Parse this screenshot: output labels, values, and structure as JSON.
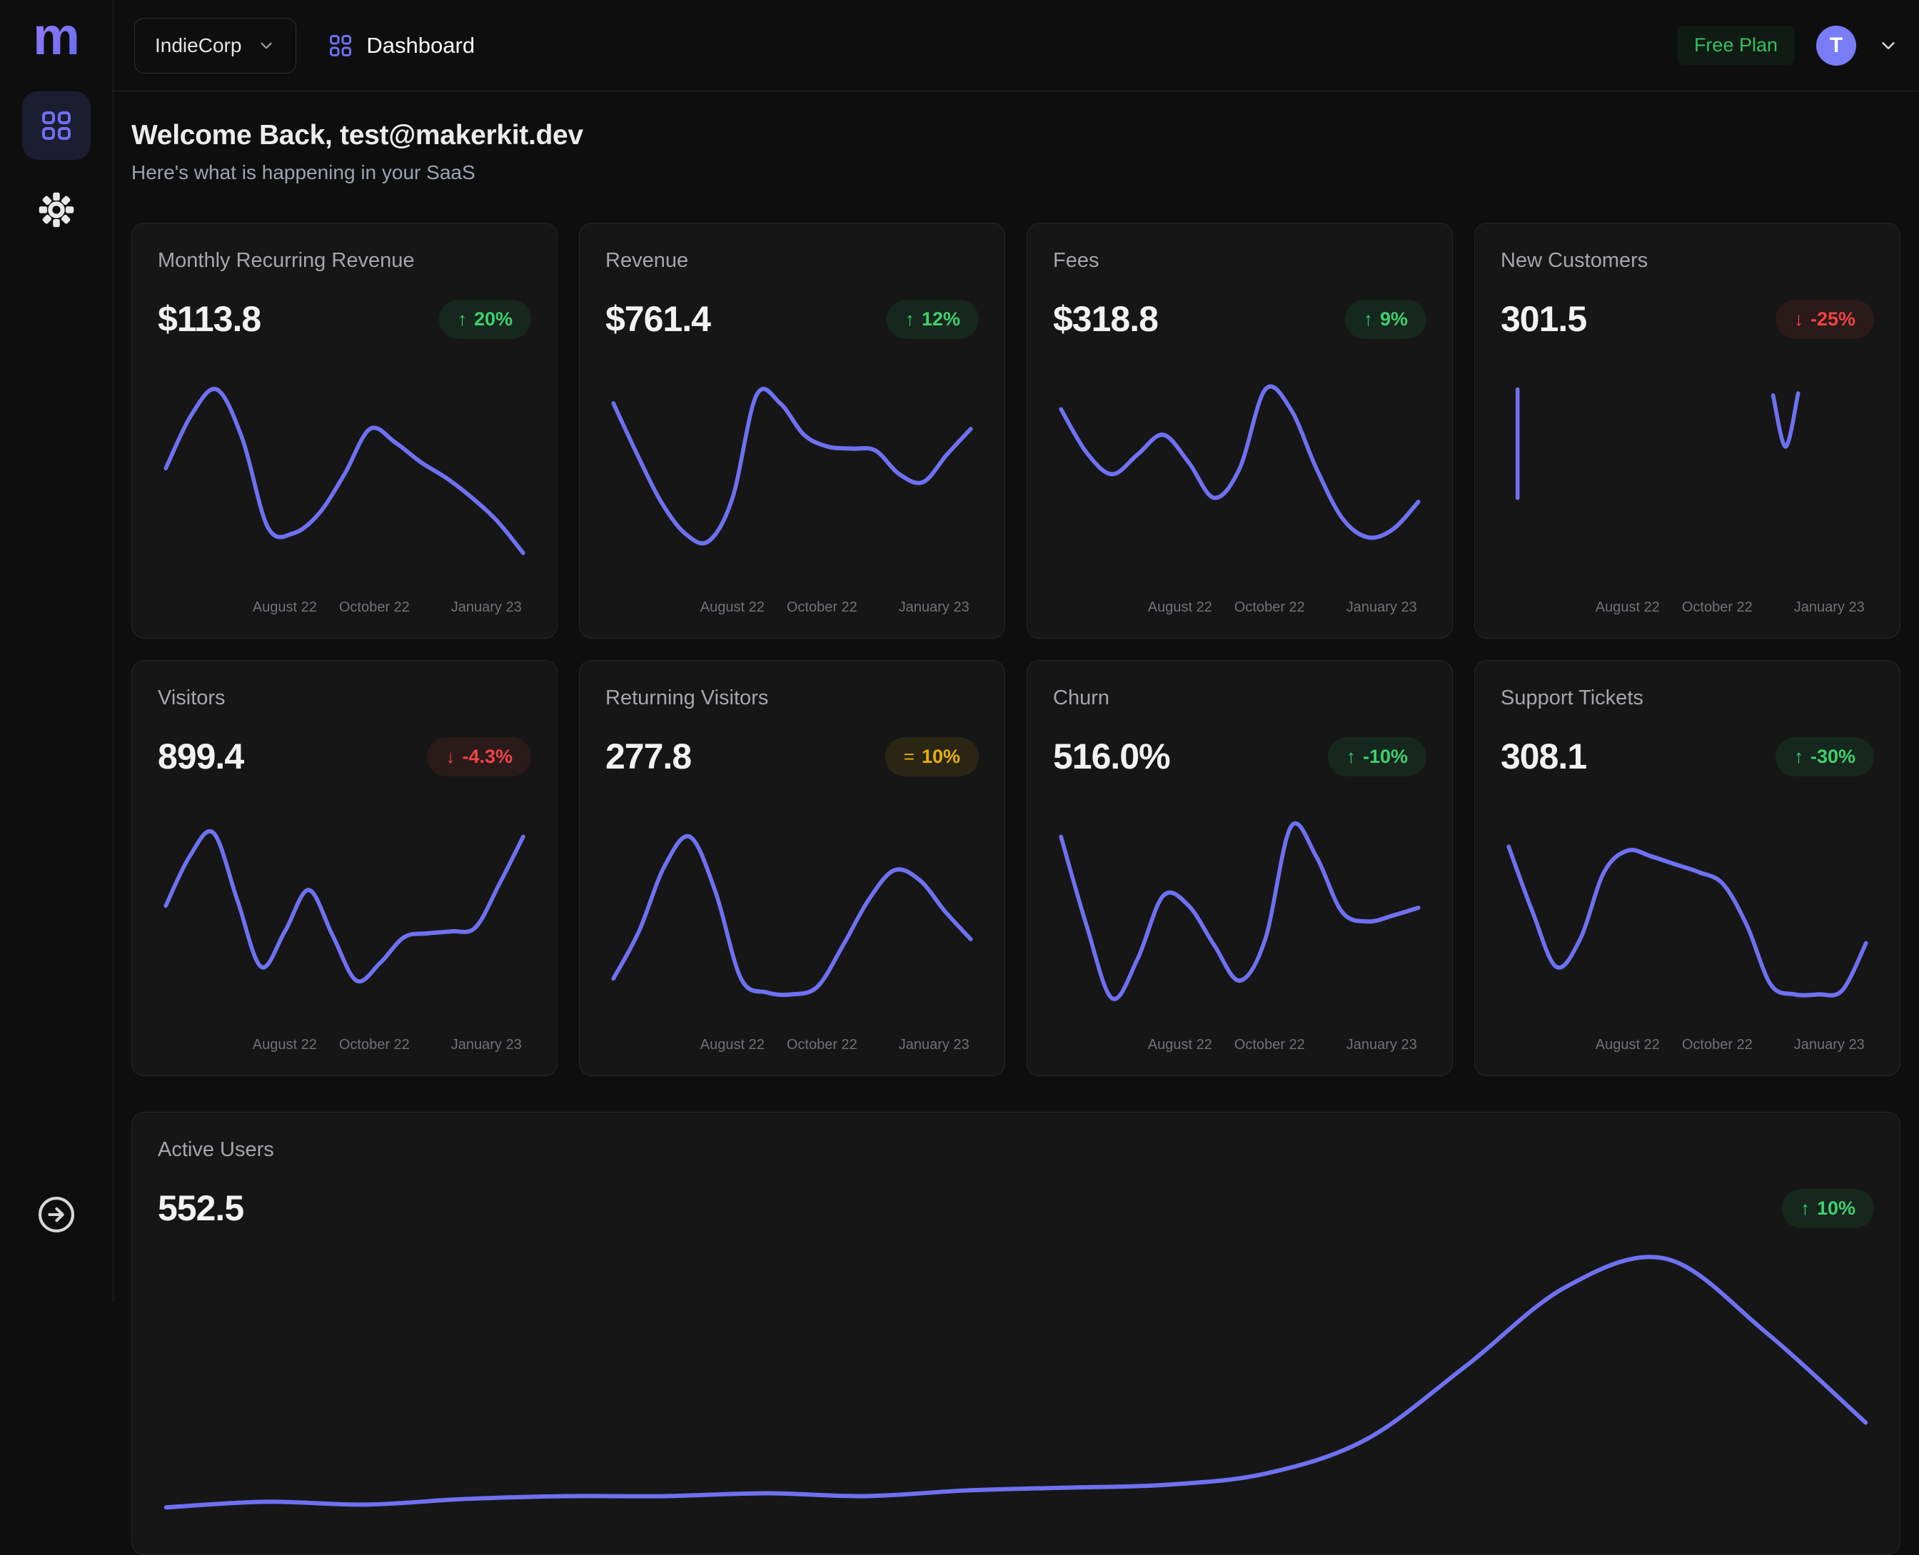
{
  "colors": {
    "accent": "#6e71f2",
    "green": "#3fcf6f",
    "green2": "#35c05f",
    "red": "#ef4444",
    "yellow": "#e7b008"
  },
  "sidebar": {
    "logo": "m"
  },
  "topbar": {
    "team_selector": "IndieCorp",
    "page_title": "Dashboard",
    "plan_badge": "Free Plan",
    "avatar_initial": "T"
  },
  "header": {
    "title": "Welcome Back, test@makerkit.dev",
    "subtitle": "Here's what is happening in your SaaS"
  },
  "axis_labels": [
    "August 22",
    "October 22",
    "January 23"
  ],
  "cards": [
    {
      "title": "Monthly Recurring Revenue",
      "value": "$113.8",
      "badge": {
        "icon": "↑",
        "label": "20%",
        "tone": "green"
      },
      "chart": {
        "type": "line",
        "values": [
          55,
          82,
          95,
          70,
          25,
          22,
          32,
          52,
          75,
          68,
          58,
          50,
          40,
          28,
          12
        ]
      }
    },
    {
      "title": "Revenue",
      "value": "$761.4",
      "badge": {
        "icon": "↑",
        "label": "12%",
        "tone": "green"
      },
      "chart": {
        "type": "line",
        "values": [
          88,
          62,
          38,
          22,
          18,
          40,
          92,
          88,
          72,
          66,
          65,
          64,
          52,
          48,
          62,
          75
        ]
      }
    },
    {
      "title": "Fees",
      "value": "$318.8",
      "badge": {
        "icon": "↑",
        "label": "9%",
        "tone": "green"
      },
      "chart": {
        "type": "line",
        "values": [
          85,
          63,
          52,
          62,
          72,
          58,
          40,
          55,
          95,
          85,
          55,
          30,
          20,
          24,
          38
        ]
      }
    },
    {
      "title": "New Customers",
      "value": "301.5",
      "badge": {
        "icon": "↓",
        "label": "-25%",
        "tone": "red"
      },
      "chart": {
        "type": "line",
        "segments": [
          [
            [
              2.5,
              95
            ],
            [
              2.5,
              40
            ]
          ],
          [
            [
              74,
              92
            ],
            [
              77.5,
              66
            ],
            [
              81,
              93
            ]
          ]
        ]
      }
    },
    {
      "title": "Visitors",
      "value": "899.4",
      "badge": {
        "icon": "↓",
        "label": "-4.3%",
        "tone": "red"
      },
      "chart": {
        "type": "line",
        "values": [
          55,
          80,
          92,
          58,
          24,
          42,
          63,
          40,
          17,
          26,
          39,
          41,
          42,
          44,
          66,
          90
        ]
      }
    },
    {
      "title": "Returning Visitors",
      "value": "277.8",
      "badge": {
        "icon": "=",
        "label": "10%",
        "tone": "yellow"
      },
      "chart": {
        "type": "line",
        "values": [
          18,
          42,
          75,
          90,
          62,
          18,
          11,
          10,
          14,
          35,
          58,
          73,
          68,
          52,
          38
        ]
      }
    },
    {
      "title": "Churn",
      "value": "516.0%",
      "badge": {
        "icon": "↑",
        "label": "-10%",
        "tone": "green"
      },
      "chart": {
        "type": "line",
        "values": [
          90,
          45,
          8,
          28,
          60,
          55,
          35,
          17,
          38,
          95,
          80,
          52,
          47,
          50,
          54
        ]
      }
    },
    {
      "title": "Support Tickets",
      "value": "308.1",
      "badge": {
        "icon": "↑",
        "label": "-30%",
        "tone": "green"
      },
      "chart": {
        "type": "line",
        "values": [
          85,
          52,
          24,
          38,
          72,
          83,
          80,
          76,
          72,
          66,
          45,
          15,
          10,
          10,
          12,
          36
        ]
      }
    },
    {
      "title": "Active Users",
      "value": "552.5",
      "badge": {
        "icon": "↑",
        "label": "10%",
        "tone": "green"
      },
      "chart": {
        "type": "line",
        "values": [
          8,
          10,
          9,
          11,
          12,
          12,
          13,
          12,
          14,
          15,
          16,
          20,
          32,
          58,
          86,
          96,
          70,
          38
        ]
      }
    }
  ]
}
